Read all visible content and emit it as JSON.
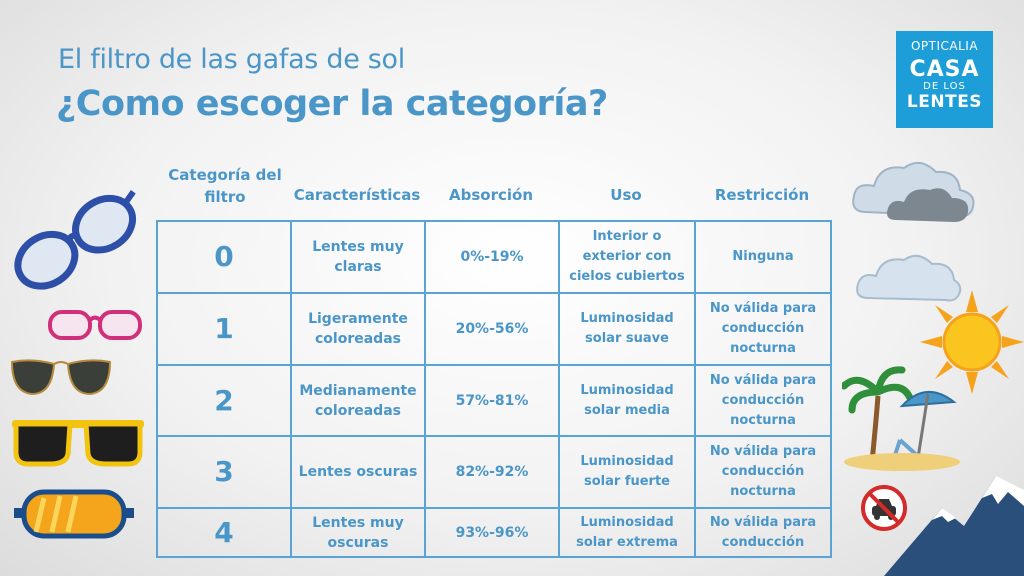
{
  "title": {
    "subtitle": "El filtro de las gafas de sol",
    "main": "¿Como escoger la categoría?"
  },
  "logo": {
    "brand": "OPTICALIA",
    "line1": "CASA",
    "line2": "DE LOS",
    "line3": "LENTES"
  },
  "headers": {
    "category": "Categoría del filtro",
    "characteristics": "Características",
    "absorption": "Absorción",
    "use": "Uso",
    "restriction": "Restricción"
  },
  "rows": [
    {
      "category": "0",
      "characteristics": "Lentes muy claras",
      "absorption": "0%-19%",
      "use": "Interior o exterior con cielos cubiertos",
      "restriction": "Ninguna"
    },
    {
      "category": "1",
      "characteristics": "Ligeramente coloreadas",
      "absorption": "20%-56%",
      "use": "Luminosidad solar suave",
      "restriction": "No válida para conducción nocturna"
    },
    {
      "category": "2",
      "characteristics": "Medianamente coloreadas",
      "absorption": "57%-81%",
      "use": "Luminosidad solar media",
      "restriction": "No válida para conducción nocturna"
    },
    {
      "category": "3",
      "characteristics": "Lentes oscuras",
      "absorption": "82%-92%",
      "use": "Luminosidad solar fuerte",
      "restriction": "No válida para conducción nocturna"
    },
    {
      "category": "4",
      "characteristics": "Lentes muy oscuras",
      "absorption": "93%-96%",
      "use": "Luminosidad solar extrema",
      "restriction": "No válida para conducción"
    }
  ],
  "colors": {
    "accent": "#4a96c8",
    "logo_bg": "#1e9ed8",
    "table_border": "#5aa3d4"
  },
  "icons": [
    "blue-glasses-icon",
    "pink-glasses-icon",
    "aviator-sunglasses-icon",
    "yellow-sunglasses-icon",
    "ski-goggles-icon",
    "cloud-icon",
    "sun-icon",
    "beach-icon",
    "no-driving-icon",
    "mountain-icon"
  ]
}
